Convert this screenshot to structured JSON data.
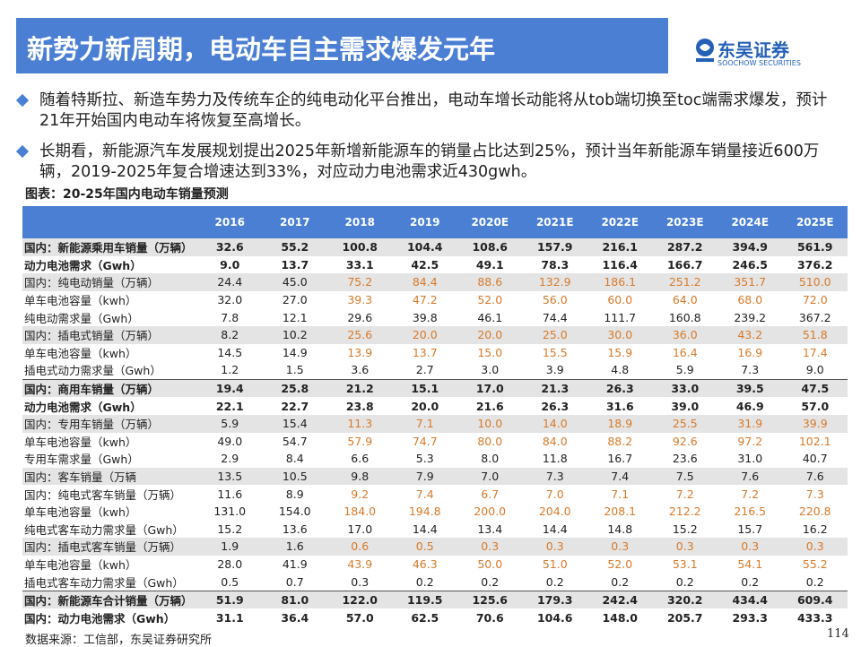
{
  "header": {
    "title": "新势力新周期，电动车自主需求爆发元年",
    "logo": "东吴证券",
    "logo_sub": "SOOCHOW SECURITIES"
  },
  "bullets": [
    "随着特斯拉、新造车势力及传统车企的纯电动化平台推出，电动车增长动能将从tob端切换至toc端需求爆发，预计21年开始国内电动车将恢复至高增长。",
    "长期看，新能源汽车发展规划提出2025年新增新能源车的销量占比达到25%，预计当年新能源车销量接近600万辆，2019-2025年复合增速达到33%，对应动力电池需求近430gwh。"
  ],
  "table": {
    "caption": "图表：20-25年国内电动车销量预测",
    "columns": [
      "2016",
      "2017",
      "2018",
      "2019",
      "2020E",
      "2021E",
      "2022E",
      "2023E",
      "2024E",
      "2025E"
    ],
    "rows": [
      [
        "国内：新能源乘用车销量（万辆）",
        "32.6",
        "55.2",
        "100.8",
        "104.4",
        "108.6",
        "157.9",
        "216.1",
        "287.2",
        "394.9",
        "561.9"
      ],
      [
        "动力电池需求（Gwh）",
        "9.0",
        "13.7",
        "33.1",
        "42.5",
        "49.1",
        "78.3",
        "116.4",
        "166.7",
        "246.5",
        "376.2"
      ],
      [
        "国内：纯电动销量（万辆）",
        "24.4",
        "45.0",
        "75.2",
        "84.4",
        "88.6",
        "132.9",
        "186.1",
        "251.2",
        "351.7",
        "510.0"
      ],
      [
        "单车电池容量（kwh）",
        "32.0",
        "27.0",
        "39.3",
        "47.2",
        "52.0",
        "56.0",
        "60.0",
        "64.0",
        "68.0",
        "72.0"
      ],
      [
        "纯电动需求量（Gwh）",
        "7.8",
        "12.1",
        "29.6",
        "39.8",
        "46.1",
        "74.4",
        "111.7",
        "160.8",
        "239.2",
        "367.2"
      ],
      [
        "国内：插电式销量（万辆）",
        "8.2",
        "10.2",
        "25.6",
        "20.0",
        "20.0",
        "25.0",
        "30.0",
        "36.0",
        "43.2",
        "51.8"
      ],
      [
        "单车电池容量（kwh）",
        "14.5",
        "14.9",
        "13.9",
        "13.7",
        "15.0",
        "15.5",
        "15.9",
        "16.4",
        "16.9",
        "17.4"
      ],
      [
        "插电式动力需求量（Gwh）",
        "1.2",
        "1.5",
        "3.6",
        "2.7",
        "3.0",
        "3.9",
        "4.8",
        "5.9",
        "7.3",
        "9.0"
      ],
      [
        "国内：商用车销量（万辆）",
        "19.4",
        "25.8",
        "21.2",
        "15.1",
        "17.0",
        "21.3",
        "26.3",
        "33.0",
        "39.5",
        "47.5"
      ],
      [
        "动力电池需求（Gwh）",
        "22.1",
        "22.7",
        "23.8",
        "20.0",
        "21.6",
        "26.3",
        "31.6",
        "39.0",
        "46.9",
        "57.0"
      ],
      [
        "国内：专用车销量（万辆）",
        "5.9",
        "15.4",
        "11.3",
        "7.1",
        "10.0",
        "14.0",
        "18.9",
        "25.5",
        "31.9",
        "39.9"
      ],
      [
        "单车电池容量（kwh）",
        "49.0",
        "54.7",
        "57.9",
        "74.7",
        "80.0",
        "84.0",
        "88.2",
        "92.6",
        "97.2",
        "102.1"
      ],
      [
        "专用车需求量（Gwh）",
        "2.9",
        "8.4",
        "6.6",
        "5.3",
        "8.0",
        "11.8",
        "16.7",
        "23.6",
        "31.0",
        "40.7"
      ],
      [
        "国内：客车销量（万辆",
        "13.5",
        "10.5",
        "9.8",
        "7.9",
        "7.0",
        "7.3",
        "7.4",
        "7.5",
        "7.6",
        "7.6"
      ],
      [
        "国内：纯电式客车销量（万辆）",
        "11.6",
        "8.9",
        "9.2",
        "7.4",
        "6.7",
        "7.0",
        "7.1",
        "7.2",
        "7.2",
        "7.3"
      ],
      [
        "单车电池容量（kwh）",
        "131.0",
        "154.0",
        "184.0",
        "194.8",
        "200.0",
        "204.0",
        "208.1",
        "212.2",
        "216.5",
        "220.8"
      ],
      [
        "纯电式客车动力需求量（Gwh）",
        "15.2",
        "13.6",
        "17.0",
        "14.4",
        "13.4",
        "14.4",
        "14.8",
        "15.2",
        "15.7",
        "16.2"
      ],
      [
        "国内：插电式客车销量（万辆）",
        "1.9",
        "1.6",
        "0.6",
        "0.5",
        "0.3",
        "0.3",
        "0.3",
        "0.3",
        "0.3",
        "0.3"
      ],
      [
        "单车电池容量（kwh）",
        "28.0",
        "41.9",
        "43.9",
        "46.3",
        "50.0",
        "51.0",
        "52.0",
        "53.1",
        "54.1",
        "55.2"
      ],
      [
        "插电式客车动力需求量（Gwh）",
        "0.5",
        "0.7",
        "0.3",
        "0.2",
        "0.2",
        "0.2",
        "0.2",
        "0.2",
        "0.2",
        "0.2"
      ],
      [
        "国内：新能源车合计销量（万辆）",
        "51.9",
        "81.0",
        "122.0",
        "119.5",
        "125.6",
        "179.3",
        "242.4",
        "320.2",
        "434.4",
        "609.4"
      ],
      [
        "国内：动力电池需求（Gwh）",
        "31.1",
        "36.4",
        "57.0",
        "62.5",
        "70.6",
        "104.6",
        "148.0",
        "205.7",
        "293.3",
        "433.3"
      ]
    ]
  },
  "footer": {
    "source": "数据来源：工信部，东吴证券研究所",
    "page": "114"
  }
}
